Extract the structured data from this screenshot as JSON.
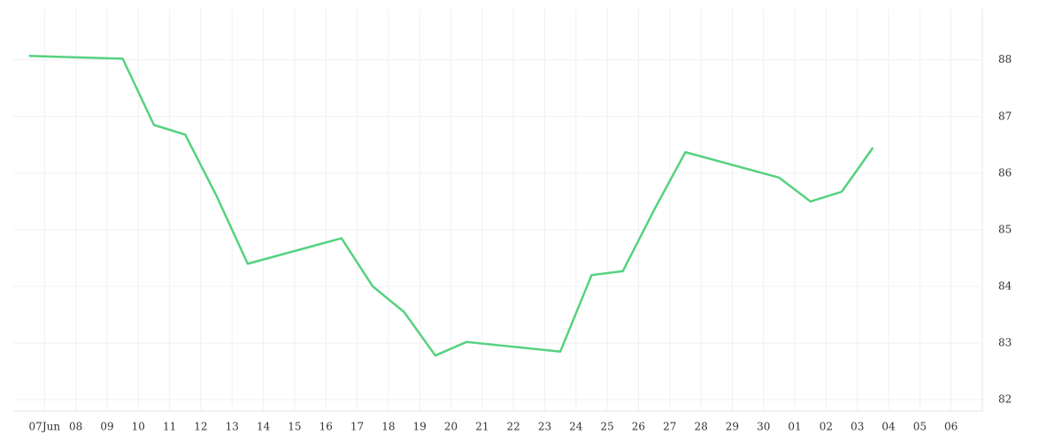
{
  "chart_data": {
    "type": "line",
    "x": [
      -0.5,
      2.5,
      3.5,
      4.5,
      5.5,
      6.5,
      9.5,
      10.5,
      11.5,
      12.5,
      13.5,
      16.5,
      17.5,
      18.5,
      19.5,
      20.5,
      23.5,
      24.5,
      25.5,
      26.5
    ],
    "series": [
      {
        "color": "#55d27f",
        "values": [
          88.07,
          88.02,
          86.85,
          86.68,
          85.6,
          84.4,
          84.85,
          84.0,
          83.55,
          82.78,
          83.02,
          82.85,
          84.2,
          84.27,
          85.35,
          86.37,
          85.92,
          85.5,
          85.67,
          86.45
        ]
      }
    ],
    "xlim": [
      -1,
      30
    ],
    "xticks": [
      {
        "value": 0,
        "label": "07Jun"
      },
      {
        "value": 1,
        "label": "08"
      },
      {
        "value": 2,
        "label": "09"
      },
      10,
      11,
      12,
      13,
      14,
      15,
      16,
      17,
      18,
      19,
      20,
      21,
      22,
      23,
      24,
      25,
      26,
      27,
      28,
      29,
      30,
      {
        "value": 24,
        "label": "01"
      },
      {
        "value": 25,
        "label": "02"
      },
      {
        "value": 26,
        "label": "03"
      },
      {
        "value": 27,
        "label": "04"
      },
      {
        "value": 28,
        "label": "05"
      },
      {
        "value": 29,
        "label": "06"
      }
    ],
    "ylim": [
      81.8,
      88.9
    ],
    "yticks": [
      82,
      83,
      84,
      85,
      86,
      87,
      88
    ],
    "grid": true
  }
}
